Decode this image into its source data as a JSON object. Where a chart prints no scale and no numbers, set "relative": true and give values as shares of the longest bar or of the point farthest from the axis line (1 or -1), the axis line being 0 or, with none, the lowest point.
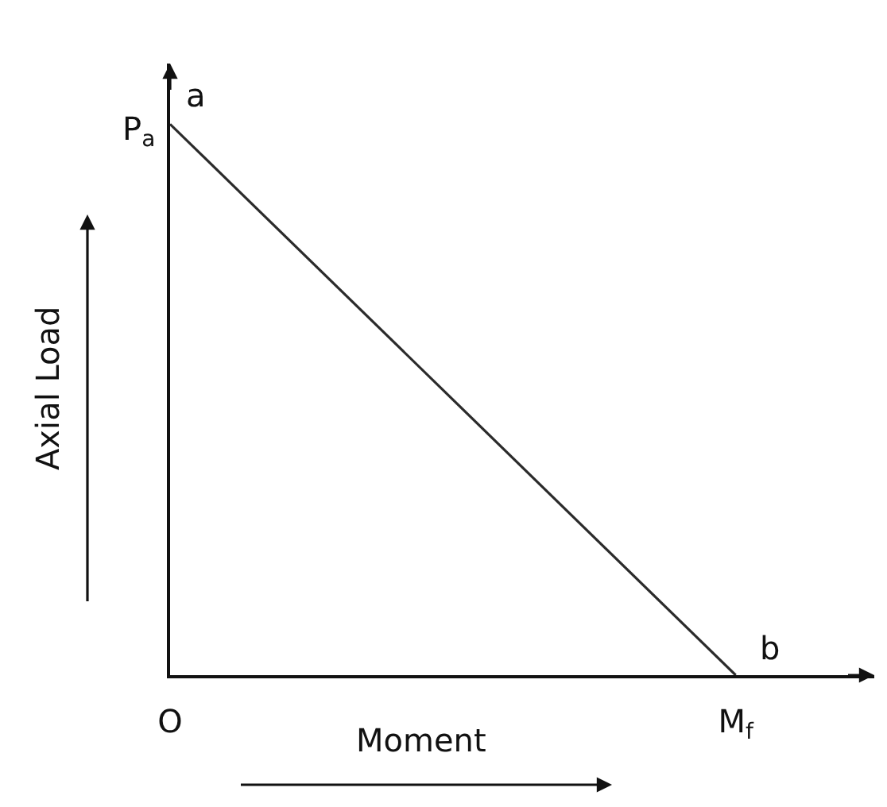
{
  "chart_data": {
    "type": "line",
    "relative": true,
    "xlabel": "Moment",
    "ylabel": "Axial Load",
    "categories": [
      "O",
      "M$_{f}$"
    ],
    "values": [
      1,
      0
    ],
    "color": "#2b2b2b",
    "annotations": [
      {
        "text": "P$_{a}$",
        "x": "O",
        "y": 1
      },
      {
        "text": "a",
        "x": "O",
        "y": 1
      },
      {
        "text": "b",
        "x": "M$_{f}$",
        "y": 0
      }
    ]
  }
}
